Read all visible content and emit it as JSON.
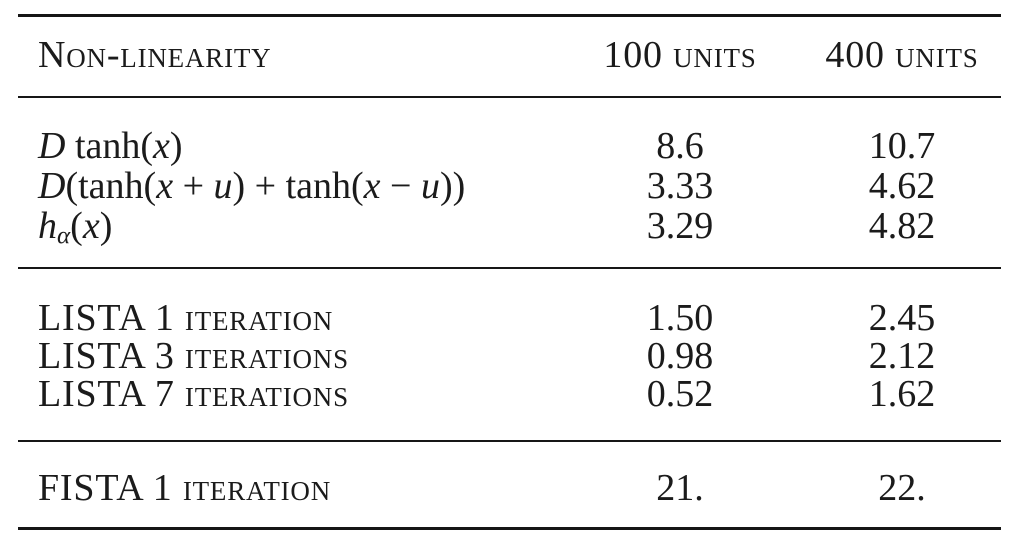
{
  "colors": {
    "background": "#ffffff",
    "text": "#1b1b1b",
    "rule": "#161616"
  },
  "table": {
    "header": {
      "nonlinearity": "Non-linearity",
      "units100": "100 units",
      "units400": "400 units"
    },
    "rows": {
      "dtanh": {
        "f": [
          "D",
          " tanh(",
          "x",
          ")"
        ],
        "v100": "8.6",
        "v400": "10.7"
      },
      "d2tanh": {
        "f": [
          "D",
          "(tanh(",
          "x",
          " + ",
          "u",
          ") + tanh(",
          "x",
          " − ",
          "u",
          "))"
        ],
        "v100": "3.33",
        "v400": "4.62"
      },
      "halpha": {
        "f": [
          "h",
          "α",
          "(",
          "x",
          ")"
        ],
        "v100": "3.29",
        "v400": "4.82"
      },
      "lista1": {
        "label": "LISTA 1 iteration",
        "v100": "1.50",
        "v400": "2.45"
      },
      "lista3": {
        "label": "LISTA 3 iterations",
        "v100": "0.98",
        "v400": "2.12"
      },
      "lista7": {
        "label": "LISTA 7 iterations",
        "v100": "0.52",
        "v400": "1.62"
      },
      "fista1": {
        "label": "FISTA 1 iteration",
        "v100": "21.",
        "v400": "22."
      }
    }
  }
}
